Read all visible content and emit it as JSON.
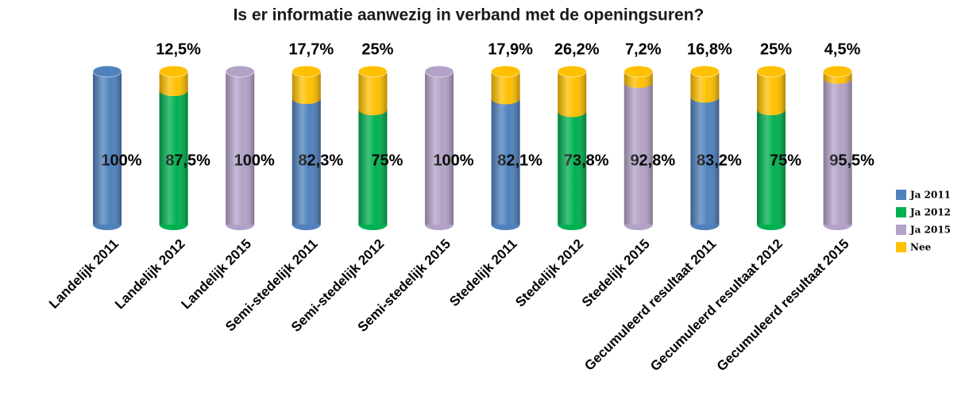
{
  "chart_data": {
    "type": "bar",
    "stacked": true,
    "title": "Is er informatie aanwezig in verband met de openingsuren?",
    "categories": [
      "Landelijk 2011",
      "Landelijk 2012",
      "Landelijk 2015",
      "Semi-stedelijk 2011",
      "Semi-stedelijk 2012",
      "Semi-stedelijk 2015",
      "Stedelijk 2011",
      "Stedelijk 2012",
      "Stedelijk 2015",
      "Gecumuleerd resultaat 2011",
      "Gecumuleerd resultaat 2012",
      "Gecumuleerd resultaat 2015"
    ],
    "series": [
      {
        "name": "Ja 2011",
        "color": "#4f81bd",
        "values": [
          100,
          null,
          null,
          82.3,
          null,
          null,
          82.1,
          null,
          null,
          83.2,
          null,
          null
        ],
        "value_labels": [
          "100%",
          null,
          null,
          "82,3%",
          null,
          null,
          "82,1%",
          null,
          null,
          "83,2%",
          null,
          null
        ]
      },
      {
        "name": "Ja 2012",
        "color": "#00b050",
        "values": [
          null,
          87.5,
          null,
          null,
          75,
          null,
          null,
          73.8,
          null,
          null,
          75,
          null
        ],
        "value_labels": [
          null,
          "87,5%",
          null,
          null,
          "75%",
          null,
          null,
          "73,8%",
          null,
          null,
          "75%",
          null
        ]
      },
      {
        "name": "Ja 2015",
        "color": "#b3a2c7",
        "values": [
          null,
          null,
          100,
          null,
          null,
          100,
          null,
          null,
          92.8,
          null,
          null,
          95.5
        ],
        "value_labels": [
          null,
          null,
          "100%",
          null,
          null,
          "100%",
          null,
          null,
          "92,8%",
          null,
          null,
          "95,5%"
        ]
      },
      {
        "name": "Nee",
        "color": "#ffc000",
        "values": [
          null,
          12.5,
          null,
          17.7,
          25,
          null,
          17.9,
          26.2,
          7.2,
          16.8,
          25,
          4.5
        ],
        "value_labels": [
          null,
          "12,5%",
          null,
          "17,7%",
          "25%",
          null,
          "17,9%",
          "26,2%",
          "7,2%",
          "16,8%",
          "25%",
          "4,5%"
        ]
      }
    ],
    "legend": "right"
  }
}
